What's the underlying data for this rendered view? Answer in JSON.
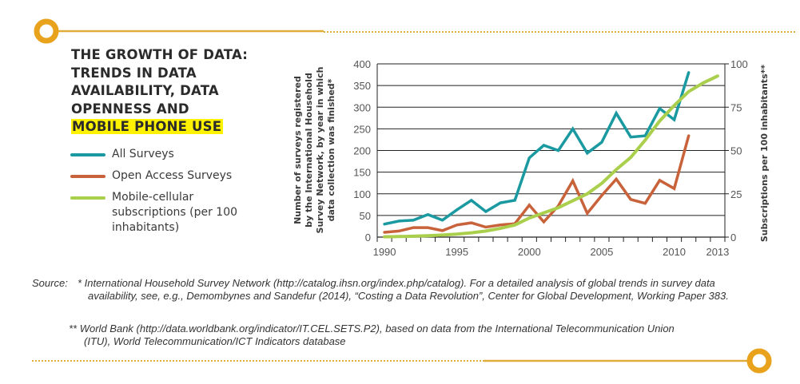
{
  "title": {
    "line1": "THE GROWTH OF DATA:",
    "line2": "TRENDS IN DATA",
    "line3": "AVAILABILITY, DATA",
    "line4": "OPENNESS AND",
    "highlight": "MOBILE PHONE USE"
  },
  "legend": [
    {
      "label": "All Surveys",
      "color": "#1a9aa0"
    },
    {
      "label": "Open Access Surveys",
      "color": "#c8623a"
    },
    {
      "label": "Mobile-cellular subscriptions (per 100 inhabitants)",
      "color": "#a9cf4c"
    }
  ],
  "colors": {
    "accent": "#e8a21c",
    "highlight": "#fff200"
  },
  "chart_data": {
    "type": "line",
    "title": "The growth of data: trends in data availability, data openness and mobile phone use",
    "x": [
      1990,
      1991,
      1992,
      1993,
      1994,
      1995,
      1996,
      1997,
      1998,
      1999,
      2000,
      2001,
      2002,
      2003,
      2004,
      2005,
      2006,
      2007,
      2008,
      2009,
      2010,
      2011,
      2012,
      2013
    ],
    "xticks": [
      "1990",
      "1995",
      "2000",
      "2005",
      "2010",
      "2013"
    ],
    "xtick_values": [
      1990,
      1995,
      2000,
      2005,
      2010,
      2013
    ],
    "xlim": [
      1990,
      2013
    ],
    "ylabel_left": [
      "Number of surveys registered",
      "by the International Household",
      "Survey Network, by year in which",
      "data collection was finished*"
    ],
    "ylabel_right": "Subscriptions per 100 inhabitants**",
    "ylim_left": [
      0,
      400
    ],
    "yticks_left": [
      0,
      50,
      100,
      150,
      200,
      250,
      300,
      350,
      400
    ],
    "ylim_right": [
      0,
      100
    ],
    "yticks_right": [
      0,
      25,
      50,
      75,
      100
    ],
    "grid": true,
    "series": [
      {
        "name": "All Surveys",
        "axis": "left",
        "color": "#1a9aa0",
        "values": [
          30,
          37,
          39,
          52,
          39,
          63,
          85,
          59,
          79,
          85,
          183,
          212,
          200,
          250,
          194,
          219,
          286,
          231,
          234,
          297,
          271,
          380,
          null,
          null
        ]
      },
      {
        "name": "Open Access Surveys",
        "axis": "left",
        "color": "#c8623a",
        "values": [
          11,
          14,
          22,
          22,
          15,
          28,
          33,
          23,
          28,
          31,
          74,
          35,
          72,
          130,
          55,
          96,
          134,
          87,
          78,
          131,
          112,
          234,
          null,
          null
        ]
      },
      {
        "name": "Mobile-cellular subscriptions (per 100 inhabitants)",
        "axis": "right",
        "color": "#a9cf4c",
        "values": [
          0.2,
          0.3,
          0.5,
          0.8,
          1.2,
          1.7,
          2.5,
          3.5,
          5,
          7,
          11,
          14,
          17,
          21,
          25,
          31,
          39,
          46,
          56,
          67,
          76,
          84,
          89,
          93
        ]
      }
    ]
  },
  "source": {
    "label": "Source:",
    "note1": "* International Household Survey Network (http://catalog.ihsn.org/index.php/catalog). For a detailed analysis of global trends in survey data availability, see, e.g., Demombynes and Sandefur (2014), “Costing a Data Revolution”, Center for Global Development, Working Paper 383.",
    "note2": "** World Bank (http://data.worldbank.org/indicator/IT.CEL.SETS.P2), based on data from the International Telecommunication Union (ITU), World Telecommunication/ICT Indicators database"
  }
}
